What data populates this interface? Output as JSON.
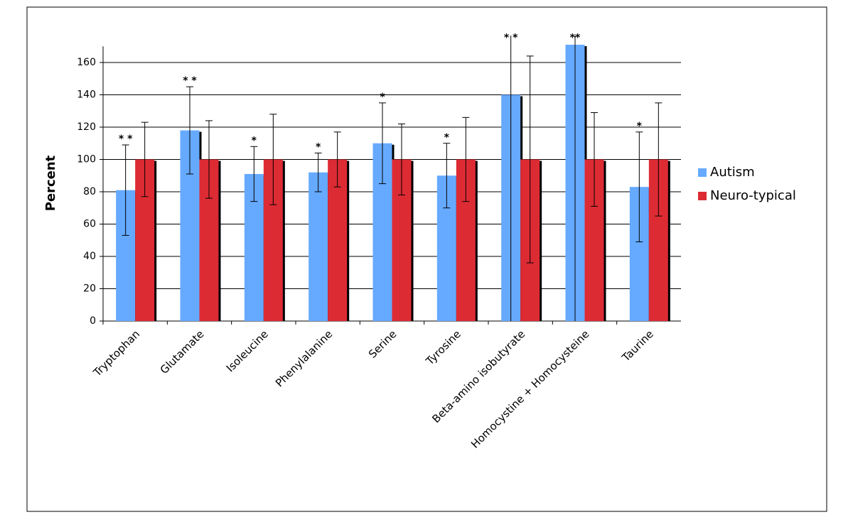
{
  "chart_data": {
    "type": "bar",
    "y_label": "Percent",
    "categories": [
      "Tryptophan",
      "Glutamate",
      "Isoleucine",
      "Phenylalanine",
      "Serine",
      "Tyrosine",
      "Beta-amino isobutyrate",
      "Homocystine + Homocysteine",
      "Taurine"
    ],
    "annotations": [
      "* *",
      "* *",
      "*",
      "*",
      "*",
      "*",
      "* *",
      "**",
      "*"
    ],
    "series": [
      {
        "name": "Autism",
        "color": "#66aaff",
        "values": [
          81,
          118,
          91,
          92,
          110,
          90,
          140,
          171,
          83
        ],
        "errors": [
          28,
          27,
          17,
          12,
          25,
          20,
          145,
          175,
          34
        ]
      },
      {
        "name": "Neuro-typical",
        "color": "#dd2b34",
        "values": [
          100,
          100,
          100,
          100,
          100,
          100,
          100,
          100,
          100
        ],
        "errors": [
          23,
          24,
          28,
          17,
          22,
          26,
          64,
          29,
          35
        ]
      }
    ],
    "ylim": [
      0,
      170
    ],
    "yticks": [
      0,
      20,
      40,
      60,
      80,
      100,
      120,
      140,
      160
    ],
    "grid": true,
    "legend": "right"
  }
}
